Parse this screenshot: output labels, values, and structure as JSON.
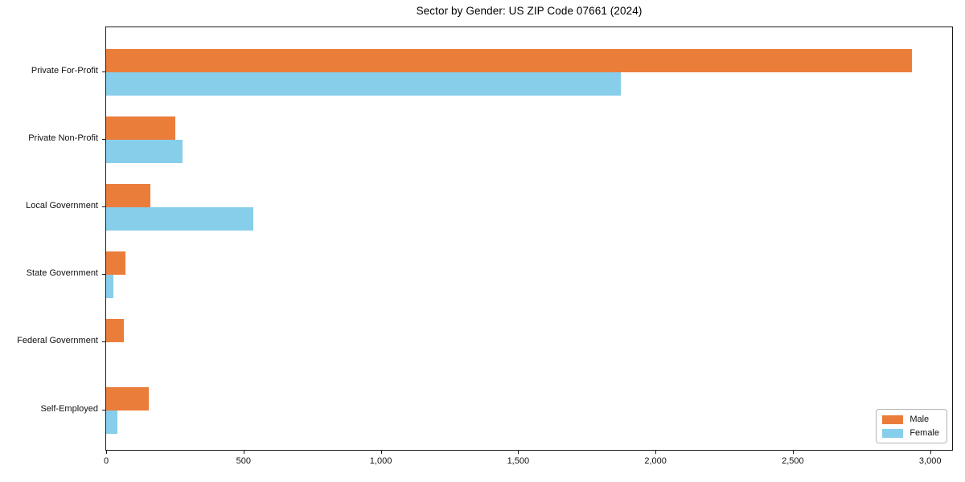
{
  "chart_data": {
    "type": "bar",
    "orientation": "horizontal",
    "title": "Sector by Gender: US ZIP Code 07661 (2024)",
    "categories": [
      "Private For-Profit",
      "Private Non-Profit",
      "Local Government",
      "State Government",
      "Federal Government",
      "Self-Employed"
    ],
    "series": [
      {
        "name": "Male",
        "color": "#EB7D3B",
        "values": [
          2933,
          253,
          160,
          69,
          63,
          154
        ]
      },
      {
        "name": "Female",
        "color": "#87CEEB",
        "values": [
          1875,
          277,
          537,
          27,
          0,
          42
        ]
      }
    ],
    "xlabel": "",
    "ylabel": "",
    "xlim": [
      0,
      3080
    ],
    "x_ticks": {
      "values": [
        0,
        500,
        1000,
        1500,
        2000,
        2500,
        3000
      ],
      "labels": [
        "0",
        "500",
        "1,000",
        "1,500",
        "2,000",
        "2,500",
        "3,000"
      ]
    },
    "grid": false,
    "legend_position": "lower right"
  }
}
